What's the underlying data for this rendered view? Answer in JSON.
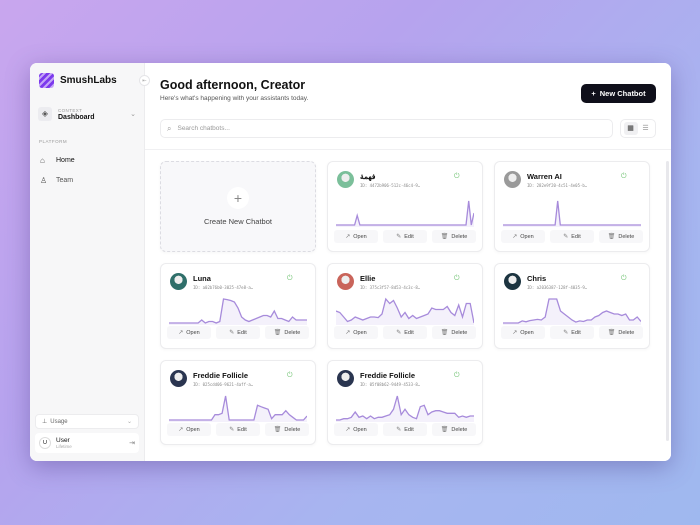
{
  "sidebar": {
    "brand": "SmushLabs",
    "context": {
      "label": "CONTEXT",
      "value": "Dashboard"
    },
    "section": "PLATFORM",
    "items": [
      {
        "label": "Home",
        "icon": "home-icon"
      },
      {
        "label": "Team",
        "icon": "user-icon"
      }
    ],
    "usage": "Usage",
    "user": {
      "initial": "U",
      "name": "User",
      "plan": "Lifetime"
    }
  },
  "header": {
    "title": "Good afternoon, Creator",
    "subtitle": "Here's what's happening with your assistants today.",
    "new_button": "New Chatbot"
  },
  "search": {
    "placeholder": "Search chatbots..."
  },
  "create_label": "Create New Chatbot",
  "actions": {
    "open": "Open",
    "edit": "Edit",
    "delete": "Delete"
  },
  "accent": "#a78bdb",
  "chatbots": [
    {
      "name": "فهمة",
      "id": "ID: 4472b906-512c-46c4-9…",
      "status": "online",
      "avatar_color": "#7bbf9a",
      "activity": [
        0,
        0,
        0,
        0,
        0,
        0,
        0,
        0,
        4,
        0,
        0,
        0,
        0,
        0,
        0,
        0,
        0,
        0,
        0,
        0,
        0,
        0,
        0,
        0,
        0,
        0,
        0,
        0,
        0,
        0,
        0,
        0,
        0,
        0,
        0,
        0,
        0,
        0,
        0,
        0,
        0,
        0,
        0,
        0,
        0,
        0,
        0,
        0,
        0,
        0,
        10,
        0,
        5
      ]
    },
    {
      "name": "Warren AI",
      "id": "ID: 282e9f20-4c51-4e05-b…",
      "status": "online",
      "avatar_color": "#9a9a9a",
      "activity": [
        0,
        0,
        0,
        0,
        0,
        0,
        0,
        0,
        0,
        0,
        0,
        0,
        0,
        0,
        0,
        0,
        0,
        0,
        0,
        0,
        0,
        10,
        0,
        0,
        0,
        0,
        0,
        0,
        0,
        0,
        0,
        0,
        0,
        0,
        0,
        0,
        0,
        0,
        0,
        0,
        0,
        0,
        0,
        0,
        0,
        0,
        0,
        0,
        0,
        0,
        0,
        0,
        0,
        0
      ]
    },
    {
      "name": "Luna",
      "id": "ID: a02b76b0-3025-47e8-a…",
      "status": "online",
      "avatar_color": "#2f6f6a",
      "activity": [
        0,
        0,
        0,
        0,
        0,
        0,
        0,
        0,
        0,
        1,
        0,
        0.5,
        0.5,
        0,
        0.5,
        8,
        7.8,
        7.5,
        7,
        5,
        2,
        1,
        0.5,
        1,
        1.5,
        2,
        2.5,
        2.5,
        2,
        4,
        1.5,
        1.5,
        1,
        0.5,
        2,
        1,
        1,
        1,
        1
      ]
    },
    {
      "name": "Ellie",
      "id": "ID: 375c3f57-8d53-4c3c-8…",
      "status": "online",
      "avatar_color": "#c9645a",
      "activity": [
        4,
        3.5,
        2,
        0.5,
        1,
        2,
        1.5,
        1,
        1.5,
        2,
        2,
        1.8,
        3,
        8,
        6.5,
        7.5,
        5,
        2,
        3.5,
        1.5,
        2.5,
        1.5,
        2,
        2.5,
        3,
        5,
        4.5,
        4.5,
        4.5,
        5.5,
        3.5,
        2.5,
        6,
        2,
        6.5,
        6.5,
        0
      ]
    },
    {
      "name": "Chris",
      "id": "ID: a2036387-128f-4035-9…",
      "status": "online",
      "avatar_color": "#1c3440",
      "activity": [
        0,
        0,
        0,
        0,
        0,
        0.7,
        0.4,
        0.8,
        1,
        1.2,
        1,
        2,
        8,
        8,
        8,
        4,
        3,
        2,
        1,
        0.3,
        0.7,
        0.5,
        1,
        1,
        2,
        2.5,
        3.5,
        4,
        3.5,
        3,
        3,
        2.5,
        3,
        1,
        1,
        2,
        0.5
      ]
    },
    {
      "name": "Freddie Follicle",
      "id": "ID: 025cdd06-9621-4aff-a…",
      "status": "online",
      "avatar_color": "#2a3550",
      "activity": [
        0,
        0,
        0,
        0,
        0,
        0,
        0,
        0,
        0,
        0,
        0,
        0,
        0,
        2,
        2,
        2.5,
        9,
        0,
        0,
        0,
        0,
        0,
        0,
        0,
        0,
        5.5,
        5,
        4.5,
        4,
        0.5,
        2,
        2,
        2,
        3.5,
        2,
        1,
        0,
        0,
        0,
        1.5
      ]
    },
    {
      "name": "Freddie Follicle",
      "id": "ID: 05f08b62-9449-4533-8…",
      "status": "online",
      "avatar_color": "#2a3550",
      "activity": [
        0,
        0,
        0.5,
        0.5,
        1,
        3,
        1,
        1.5,
        0.5,
        1.5,
        0.5,
        1,
        1,
        1.5,
        2,
        4,
        9,
        2,
        4,
        2,
        1,
        0.5,
        5,
        5.5,
        2,
        3,
        3.5,
        3.5,
        3,
        2.5,
        2.5,
        2.5,
        1,
        1.5,
        1,
        1.5,
        1.5
      ]
    }
  ]
}
